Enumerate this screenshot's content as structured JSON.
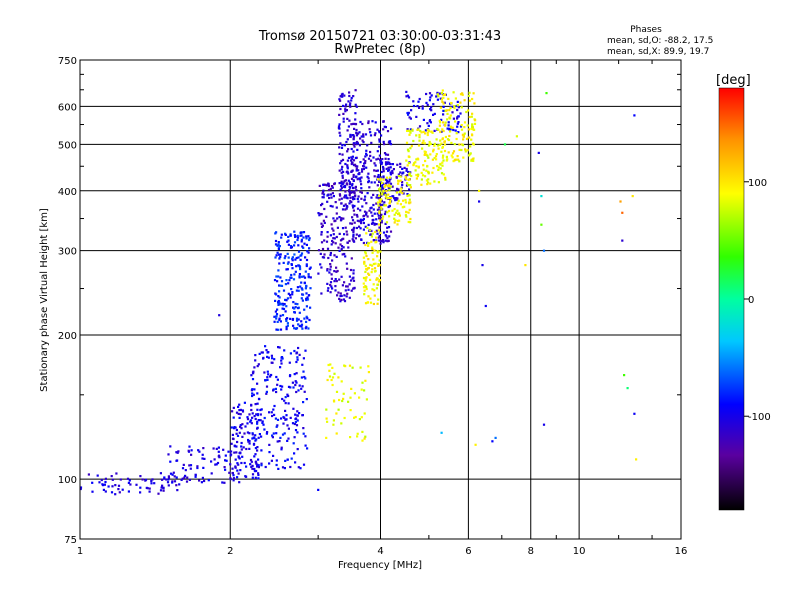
{
  "chart_data": {
    "type": "scatter",
    "title": "Tromsø 20150721 03:30:00-03:31:43",
    "subtitle": "RwPretec (8p)",
    "xlabel": "Frequency [MHz]",
    "ylabel": "Stationary phase Virtual Height [km]",
    "x_scale": "log",
    "y_scale": "log",
    "xlim": [
      1,
      16
    ],
    "ylim": [
      75,
      750
    ],
    "x_ticks": [
      1,
      2,
      4,
      6,
      8,
      10,
      16
    ],
    "x_tick_labels": [
      "1",
      "2",
      "4",
      "6",
      "8",
      "10",
      "16"
    ],
    "y_ticks": [
      75,
      100,
      200,
      300,
      400,
      500,
      600,
      750
    ],
    "y_tick_labels": [
      "75",
      "100",
      "200",
      "300",
      "400",
      "500",
      "600",
      "750"
    ],
    "grid": true,
    "stats": {
      "heading": "Phases",
      "line_o": "mean, sd,O: -88.2, 17.5",
      "line_x": "mean, sd,X: 89.9, 19.7"
    },
    "colorbar": {
      "label": "[deg]",
      "range": [
        -180,
        180
      ],
      "ticks": [
        100,
        0,
        -100
      ],
      "tick_labels": [
        "100",
        "0",
        "-100"
      ]
    },
    "series": [
      {
        "name": "O-mode echoes (blue, ~-100 deg)",
        "clusters": [
          {
            "f": [
              1.0,
              1.6
            ],
            "h": [
              93,
              103
            ],
            "phase": -105,
            "n": 70
          },
          {
            "f": [
              1.5,
              2.1
            ],
            "h": [
              98,
              118
            ],
            "phase": -102,
            "n": 90
          },
          {
            "f": [
              2.0,
              2.3
            ],
            "h": [
              100,
              145
            ],
            "phase": -100,
            "n": 120
          },
          {
            "f": [
              2.2,
              2.85
            ],
            "h": [
              105,
              190
            ],
            "phase": -95,
            "n": 220
          },
          {
            "f": [
              2.45,
              2.9
            ],
            "h": [
              205,
              330
            ],
            "phase": -82,
            "n": 250
          },
          {
            "f": [
              3.0,
              3.55
            ],
            "h": [
              235,
              420
            ],
            "phase": -112,
            "n": 230
          },
          {
            "f": [
              3.3,
              3.6
            ],
            "h": [
              380,
              650
            ],
            "phase": -110,
            "n": 130
          },
          {
            "f": [
              3.5,
              4.2
            ],
            "h": [
              310,
              560
            ],
            "phase": -108,
            "n": 300
          },
          {
            "f": [
              4.0,
              4.6
            ],
            "h": [
              380,
              460
            ],
            "phase": -105,
            "n": 80
          },
          {
            "f": [
              4.5,
              5.8
            ],
            "h": [
              530,
              650
            ],
            "phase": -100,
            "n": 90
          }
        ]
      },
      {
        "name": "X-mode echoes (yellow, ~+90 deg)",
        "clusters": [
          {
            "f": [
              3.1,
              3.8
            ],
            "h": [
              120,
              175
            ],
            "phase": 85,
            "n": 60
          },
          {
            "f": [
              3.7,
              4.0
            ],
            "h": [
              230,
              340
            ],
            "phase": 92,
            "n": 90
          },
          {
            "f": [
              3.95,
              4.6
            ],
            "h": [
              340,
              430
            ],
            "phase": 90,
            "n": 110
          },
          {
            "f": [
              4.5,
              5.4
            ],
            "h": [
              410,
              540
            ],
            "phase": 88,
            "n": 130
          },
          {
            "f": [
              5.2,
              6.2
            ],
            "h": [
              460,
              650
            ],
            "phase": 92,
            "n": 140
          }
        ]
      },
      {
        "name": "Sparse scattered echoes",
        "points": [
          [
            6.3,
            400,
            90
          ],
          [
            6.3,
            380,
            -100
          ],
          [
            6.4,
            280,
            -100
          ],
          [
            6.7,
            120,
            -90
          ],
          [
            6.8,
            122,
            -60
          ],
          [
            5.3,
            125,
            -40
          ],
          [
            6.2,
            118,
            95
          ],
          [
            7.5,
            520,
            80
          ],
          [
            7.8,
            280,
            100
          ],
          [
            8.4,
            340,
            50
          ],
          [
            8.5,
            300,
            -60
          ],
          [
            8.6,
            640,
            40
          ],
          [
            8.4,
            390,
            -20
          ],
          [
            8.3,
            480,
            -100
          ],
          [
            8.5,
            130,
            -100
          ],
          [
            12.1,
            380,
            130
          ],
          [
            12.2,
            360,
            150
          ],
          [
            12.2,
            315,
            -110
          ],
          [
            12.8,
            390,
            100
          ],
          [
            12.9,
            575,
            -90
          ],
          [
            12.3,
            165,
            40
          ],
          [
            12.5,
            155,
            10
          ],
          [
            12.9,
            137,
            -95
          ],
          [
            13.0,
            110,
            95
          ],
          [
            3.0,
            95,
            -90
          ],
          [
            1.9,
            220,
            -105
          ],
          [
            7.1,
            500,
            20
          ],
          [
            6.5,
            230,
            -95
          ]
        ]
      }
    ]
  }
}
